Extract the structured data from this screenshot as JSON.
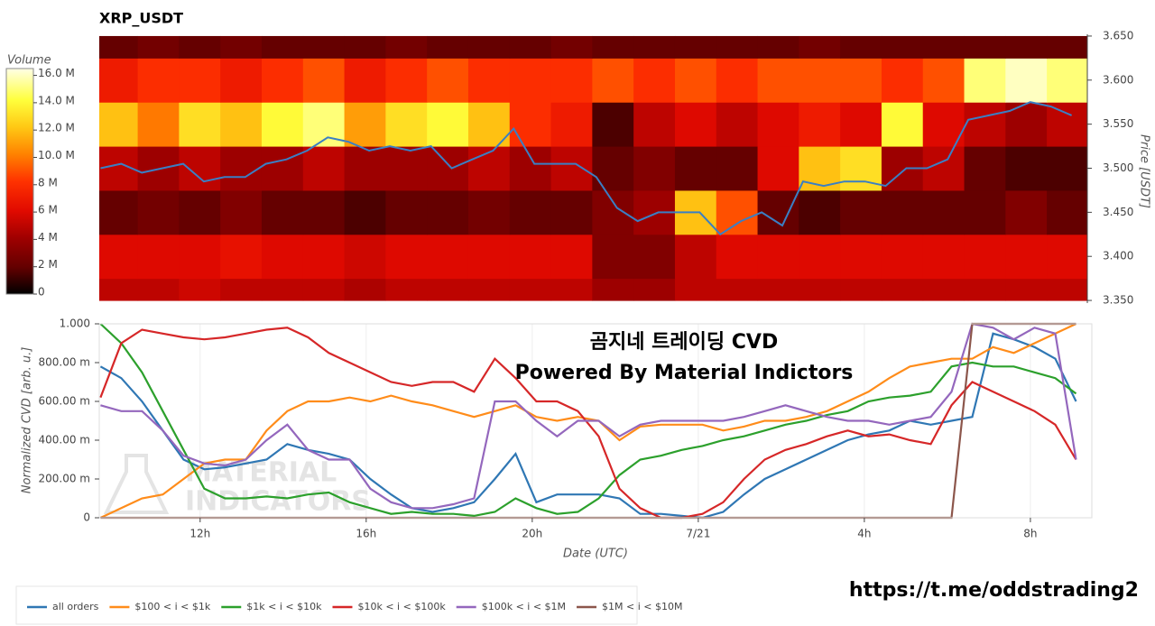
{
  "chart_data": [
    {
      "type": "heatmap",
      "title": "XRP_USDT",
      "ylabel": "Price [USDT]",
      "colorbar_label": "Volume",
      "xlim": [
        9.57,
        33.48
      ],
      "ylim": [
        3.347,
        3.652
      ],
      "yticks": [
        {
          "value": 3.35,
          "label": "3.350"
        },
        {
          "value": 3.4,
          "label": "3.400"
        },
        {
          "value": 3.45,
          "label": "3.450"
        },
        {
          "value": 3.5,
          "label": "3.500"
        },
        {
          "value": 3.55,
          "label": "3.550"
        },
        {
          "value": 3.6,
          "label": "3.600"
        },
        {
          "value": 3.65,
          "label": "3.650"
        }
      ],
      "zlim": [
        0,
        16.5
      ],
      "zticks": [
        0,
        {
          "value": 2,
          "label": "2 M"
        },
        {
          "value": 4,
          "label": "4 M"
        },
        {
          "value": 6,
          "label": "6 M"
        },
        {
          "value": 8,
          "label": "8 M"
        },
        {
          "value": 10,
          "label": "10.0 M"
        },
        {
          "value": 12,
          "label": "12.0 M"
        },
        {
          "value": 14,
          "label": "14.0 M"
        },
        {
          "value": 16,
          "label": "16.0 M"
        }
      ],
      "x": [
        10,
        11,
        12,
        13,
        14,
        15,
        16,
        17,
        18,
        19,
        20,
        21,
        22,
        23,
        24,
        25,
        26,
        27,
        28,
        29,
        30,
        31,
        32,
        33
      ],
      "y_bins": [
        3.35,
        3.375,
        3.425,
        3.475,
        3.525,
        3.575,
        3.625,
        3.65
      ],
      "z": [
        [
          5,
          5,
          5.5,
          5,
          5,
          5,
          4.5,
          5,
          5,
          5,
          5,
          5,
          4,
          4,
          5,
          5,
          5,
          5,
          5,
          5,
          5,
          5,
          5,
          5
        ],
        [
          6,
          6,
          6,
          6.5,
          6,
          6,
          5.5,
          6,
          6,
          6,
          6,
          6,
          3,
          3,
          5,
          6,
          6,
          6,
          6,
          6,
          6,
          6,
          6,
          6
        ],
        [
          2,
          2.5,
          2,
          3,
          2,
          2,
          1.5,
          2,
          2,
          2.5,
          2,
          2,
          3,
          4,
          12,
          9,
          2,
          1.5,
          2,
          2,
          2,
          2,
          3,
          2
        ],
        [
          5,
          4,
          5,
          4,
          4,
          5,
          4,
          4,
          4,
          5,
          4,
          5,
          2,
          3,
          2,
          2,
          6,
          12,
          13,
          4,
          5,
          2,
          1.5,
          1.5
        ],
        [
          12,
          10,
          13,
          12,
          14,
          15,
          11,
          13,
          14,
          12,
          8,
          7,
          1.5,
          5,
          6,
          5,
          6,
          7,
          6,
          14,
          6,
          5,
          4,
          5
        ],
        [
          7,
          8,
          8,
          7,
          8,
          9,
          7,
          8,
          9,
          8,
          8,
          8,
          9,
          8,
          9,
          8,
          9,
          9,
          9,
          8,
          9,
          15,
          16,
          15
        ],
        [
          2,
          2.5,
          2,
          2.5,
          2,
          2,
          2,
          2.5,
          2,
          2,
          2,
          2.5,
          2,
          2,
          2,
          2,
          2,
          2.5,
          2,
          2,
          2,
          2,
          2,
          2
        ]
      ],
      "line": {
        "color": "#3a7fc4",
        "x": [
          9.6,
          10.1,
          10.6,
          11.1,
          11.6,
          12.1,
          12.6,
          13.1,
          13.6,
          14.1,
          14.6,
          15.1,
          15.6,
          16.1,
          16.6,
          17.1,
          17.6,
          18.1,
          18.6,
          19.1,
          19.6,
          20.1,
          20.6,
          21.1,
          21.6,
          22.1,
          22.6,
          23.1,
          23.6,
          24.1,
          24.6,
          25.1,
          25.6,
          26.1,
          26.6,
          27.1,
          27.6,
          28.1,
          28.6,
          29.1,
          29.6,
          30.1,
          30.6,
          31.1,
          31.6,
          32.1,
          32.6,
          33.1
        ],
        "values": [
          3.5,
          3.505,
          3.495,
          3.5,
          3.505,
          3.485,
          3.49,
          3.49,
          3.505,
          3.51,
          3.52,
          3.535,
          3.53,
          3.52,
          3.525,
          3.52,
          3.525,
          3.5,
          3.51,
          3.52,
          3.545,
          3.505,
          3.505,
          3.505,
          3.49,
          3.455,
          3.44,
          3.45,
          3.45,
          3.45,
          3.425,
          3.44,
          3.45,
          3.435,
          3.485,
          3.48,
          3.485,
          3.485,
          3.48,
          3.5,
          3.5,
          3.51,
          3.555,
          3.56,
          3.565,
          3.575,
          3.57,
          3.56
        ]
      }
    },
    {
      "type": "line",
      "xlabel": "Date (UTC)",
      "ylabel": "Normalized CVD [arb. u.]",
      "annotations": [
        "곰지네 트레이딩 CVD",
        "Powered By Material Indictors"
      ],
      "watermark": [
        "MATERIAL",
        "INDICATORS"
      ],
      "xlim": [
        9.57,
        33.48
      ],
      "ylim": [
        0,
        1
      ],
      "xticks": [
        {
          "value": 12,
          "label": "12h"
        },
        {
          "value": 16,
          "label": "16h"
        },
        {
          "value": 20,
          "label": "20h"
        },
        {
          "value": 24,
          "label": "7/21"
        },
        {
          "value": 28,
          "label": "4h"
        },
        {
          "value": 32,
          "label": "8h"
        }
      ],
      "yticks": [
        0,
        {
          "value": 0.2,
          "label": "200.00 m"
        },
        {
          "value": 0.4,
          "label": "400.00 m"
        },
        {
          "value": 0.6,
          "label": "600.00 m"
        },
        {
          "value": 0.8,
          "label": "800.00 m"
        },
        {
          "value": 1,
          "label": "1.000"
        }
      ],
      "x": [
        9.6,
        10.1,
        10.6,
        11.1,
        11.6,
        12.1,
        12.6,
        13.1,
        13.6,
        14.1,
        14.6,
        15.1,
        15.6,
        16.1,
        16.6,
        17.1,
        17.6,
        18.1,
        18.6,
        19.1,
        19.6,
        20.1,
        20.6,
        21.1,
        21.6,
        22.1,
        22.6,
        23.1,
        23.6,
        24.1,
        24.6,
        25.1,
        25.6,
        26.1,
        26.6,
        27.1,
        27.6,
        28.1,
        28.6,
        29.1,
        29.6,
        30.1,
        30.6,
        31.1,
        31.6,
        32.1,
        32.6,
        33.1
      ],
      "series": [
        {
          "name": "all orders",
          "color": "#2f77b4",
          "values": [
            0.78,
            0.72,
            0.6,
            0.45,
            0.3,
            0.25,
            0.26,
            0.28,
            0.3,
            0.38,
            0.35,
            0.33,
            0.3,
            0.2,
            0.12,
            0.05,
            0.03,
            0.05,
            0.08,
            0.2,
            0.33,
            0.08,
            0.12,
            0.12,
            0.12,
            0.1,
            0.02,
            0.02,
            0.01,
            0,
            0.03,
            0.12,
            0.2,
            0.25,
            0.3,
            0.35,
            0.4,
            0.43,
            0.45,
            0.5,
            0.48,
            0.5,
            0.52,
            0.95,
            0.92,
            0.88,
            0.82,
            0.6
          ]
        },
        {
          "name": "$100 < i < $1k",
          "color": "#ff8c1a",
          "values": [
            0,
            0.05,
            0.1,
            0.12,
            0.2,
            0.28,
            0.3,
            0.3,
            0.45,
            0.55,
            0.6,
            0.6,
            0.62,
            0.6,
            0.63,
            0.6,
            0.58,
            0.55,
            0.52,
            0.55,
            0.58,
            0.52,
            0.5,
            0.52,
            0.5,
            0.4,
            0.47,
            0.48,
            0.48,
            0.48,
            0.45,
            0.47,
            0.5,
            0.5,
            0.52,
            0.55,
            0.6,
            0.65,
            0.72,
            0.78,
            0.8,
            0.82,
            0.82,
            0.88,
            0.85,
            0.9,
            0.95,
            1
          ]
        },
        {
          "name": "$1k < i < $10k",
          "color": "#2ca02c",
          "values": [
            1,
            0.9,
            0.75,
            0.55,
            0.35,
            0.15,
            0.1,
            0.1,
            0.11,
            0.1,
            0.12,
            0.13,
            0.08,
            0.05,
            0.02,
            0.03,
            0.02,
            0.02,
            0.01,
            0.03,
            0.1,
            0.05,
            0.02,
            0.03,
            0.1,
            0.22,
            0.3,
            0.32,
            0.35,
            0.37,
            0.4,
            0.42,
            0.45,
            0.48,
            0.5,
            0.53,
            0.55,
            0.6,
            0.62,
            0.63,
            0.65,
            0.78,
            0.8,
            0.78,
            0.78,
            0.75,
            0.72,
            0.64
          ]
        },
        {
          "name": "$10k < i < $100k",
          "color": "#d62728",
          "values": [
            0.62,
            0.9,
            0.97,
            0.95,
            0.93,
            0.92,
            0.93,
            0.95,
            0.97,
            0.98,
            0.93,
            0.85,
            0.8,
            0.75,
            0.7,
            0.68,
            0.7,
            0.7,
            0.65,
            0.82,
            0.72,
            0.6,
            0.6,
            0.55,
            0.42,
            0.15,
            0.05,
            0,
            0,
            0.02,
            0.08,
            0.2,
            0.3,
            0.35,
            0.38,
            0.42,
            0.45,
            0.42,
            0.43,
            0.4,
            0.38,
            0.58,
            0.7,
            0.65,
            0.6,
            0.55,
            0.48,
            0.3
          ]
        },
        {
          "name": "$100k < i < $1M",
          "color": "#9467bd",
          "values": [
            0.58,
            0.55,
            0.55,
            0.45,
            0.32,
            0.28,
            0.27,
            0.3,
            0.4,
            0.48,
            0.35,
            0.3,
            0.3,
            0.15,
            0.08,
            0.05,
            0.05,
            0.07,
            0.1,
            0.6,
            0.6,
            0.5,
            0.42,
            0.5,
            0.5,
            0.42,
            0.48,
            0.5,
            0.5,
            0.5,
            0.5,
            0.52,
            0.55,
            0.58,
            0.55,
            0.52,
            0.5,
            0.5,
            0.48,
            0.5,
            0.52,
            0.65,
            1,
            0.98,
            0.92,
            0.98,
            0.95,
            0.3
          ]
        },
        {
          "name": "$1M < i < $10M",
          "color": "#8c564b",
          "values": [
            0,
            0,
            0,
            0,
            0,
            0,
            0,
            0,
            0,
            0,
            0,
            0,
            0,
            0,
            0,
            0,
            0,
            0,
            0,
            0,
            0,
            0,
            0,
            0,
            0,
            0,
            0,
            0,
            0,
            0,
            0,
            0,
            0,
            0,
            0,
            0,
            0,
            0,
            0,
            0,
            0,
            0,
            1,
            1,
            1,
            1,
            1,
            1
          ]
        }
      ]
    }
  ],
  "footer_link": "https://t.me/oddstrading2"
}
